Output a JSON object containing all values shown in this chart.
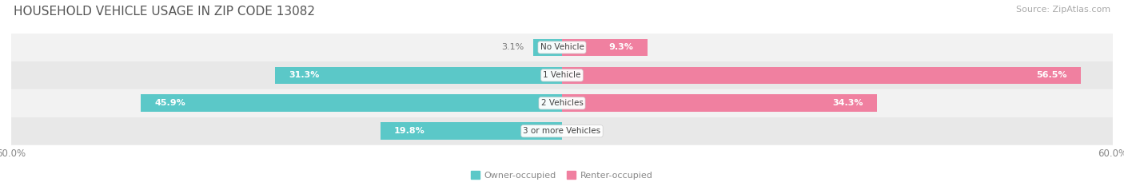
{
  "title": "HOUSEHOLD VEHICLE USAGE IN ZIP CODE 13082",
  "source": "Source: ZipAtlas.com",
  "categories": [
    "No Vehicle",
    "1 Vehicle",
    "2 Vehicles",
    "3 or more Vehicles"
  ],
  "owner_values": [
    3.1,
    31.3,
    45.9,
    19.8
  ],
  "renter_values": [
    9.3,
    56.5,
    34.3,
    0.0
  ],
  "owner_color": "#5bc8c8",
  "renter_color": "#f080a0",
  "axis_limit": 60.0,
  "owner_label": "Owner-occupied",
  "renter_label": "Renter-occupied",
  "bar_height": 0.62,
  "row_bg_colors": [
    "#f2f2f2",
    "#e8e8e8",
    "#f2f2f2",
    "#e8e8e8"
  ],
  "small_threshold": 8.0,
  "title_fontsize": 11,
  "source_fontsize": 8,
  "label_fontsize": 8,
  "cat_fontsize": 7.5,
  "tick_fontsize": 8.5
}
